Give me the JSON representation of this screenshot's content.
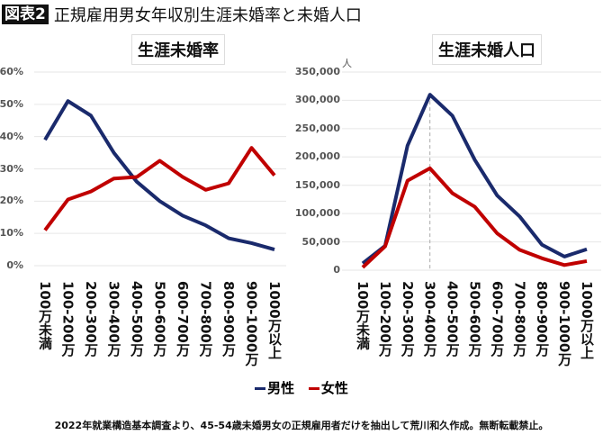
{
  "header": {
    "badge": "図表2",
    "title": "正規雇用男女年収別生涯未婚率と未婚人口"
  },
  "legend": {
    "items": [
      {
        "label": "男性",
        "color": "#1a2a6c"
      },
      {
        "label": "女性",
        "color": "#c00000"
      }
    ]
  },
  "footnote": "2022年就業構造基本調査より、45-54歳未婚男女の正規雇用者だけを抽出して荒川和久作成。無断転載禁止。",
  "chart_data": [
    {
      "type": "line",
      "title": "生涯未婚率",
      "categories": [
        "100万未満",
        "100-200万",
        "200-300万",
        "300-400万",
        "400-500万",
        "500-600万",
        "600-700万",
        "700-800万",
        "800-900万",
        "900-1000万",
        "1000万以上"
      ],
      "yticks": [
        "0%",
        "10%",
        "20%",
        "30%",
        "40%",
        "50%",
        "60%"
      ],
      "ylim": [
        0,
        60
      ],
      "unit": "%",
      "grid": true,
      "series": [
        {
          "name": "男性",
          "color": "#1a2a6c",
          "values": [
            39,
            51,
            46.5,
            35,
            26,
            20,
            15.5,
            12.5,
            8.5,
            7,
            5
          ]
        },
        {
          "name": "女性",
          "color": "#c00000",
          "values": [
            11,
            20.5,
            23,
            27,
            27.5,
            32.5,
            27.5,
            23.5,
            25.5,
            36.5,
            28
          ]
        }
      ]
    },
    {
      "type": "line",
      "title": "生涯未婚人口",
      "ylabel": "人",
      "categories": [
        "100万未満",
        "100-200万",
        "200-300万",
        "300-400万",
        "400-500万",
        "500-600万",
        "600-700万",
        "700-800万",
        "800-900万",
        "900-1000万",
        "1000万以上"
      ],
      "yticks": [
        "0",
        "50,000",
        "100,000",
        "150,000",
        "200,000",
        "250,000",
        "300,000",
        "350,000"
      ],
      "ylim": [
        0,
        350000
      ],
      "grid": true,
      "reference_line_category": "300-400万",
      "series": [
        {
          "name": "男性",
          "color": "#1a2a6c",
          "values": [
            12000,
            43000,
            220000,
            310000,
            273000,
            195000,
            132000,
            95000,
            45000,
            24000,
            37000
          ]
        },
        {
          "name": "女性",
          "color": "#c00000",
          "values": [
            5000,
            42000,
            158000,
            180000,
            136000,
            112000,
            65000,
            36000,
            21000,
            9000,
            16000
          ]
        }
      ]
    }
  ]
}
